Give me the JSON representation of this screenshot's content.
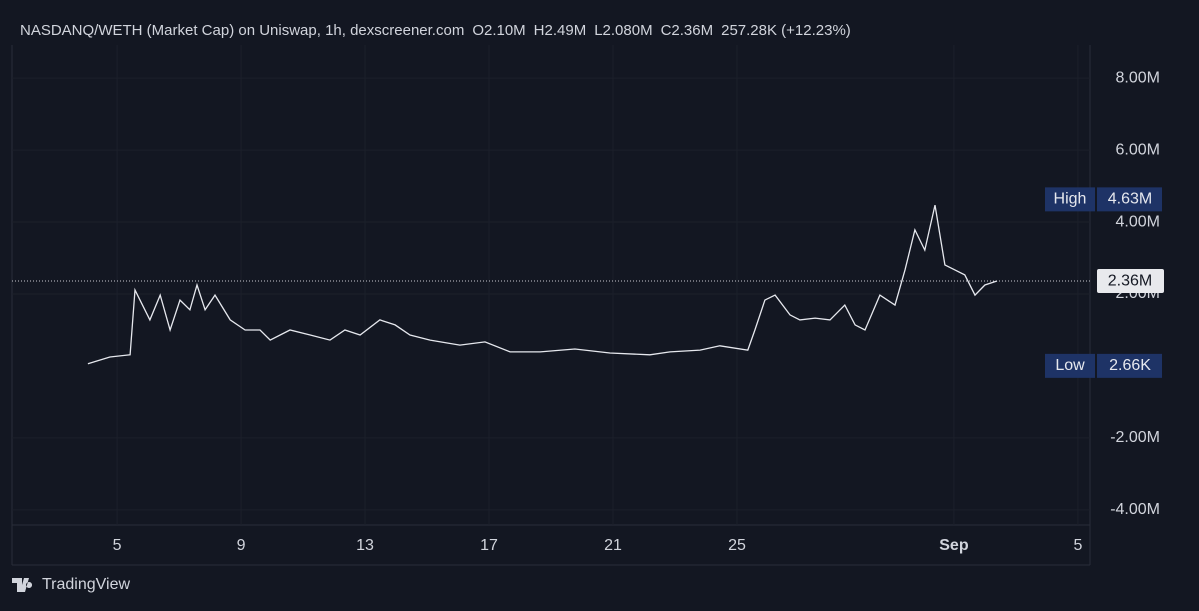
{
  "header": {
    "title": "NASDANQ/WETH (Market Cap) on Uniswap, 1h, dexscreener.com",
    "stats": [
      "O2.10M",
      "H2.49M",
      "L2.080M",
      "C2.36M",
      "257.28K (+12.23%)"
    ]
  },
  "chart_data": {
    "type": "line",
    "color": "#e6e8ee",
    "x": [
      4.06,
      4.77,
      5.42,
      5.58,
      5.74,
      6.06,
      6.39,
      6.71,
      7.03,
      7.35,
      7.58,
      7.84,
      8.16,
      8.65,
      9.13,
      9.61,
      9.94,
      10.58,
      11.23,
      11.87,
      12.35,
      12.84,
      13.48,
      13.97,
      14.45,
      15.1,
      16.06,
      16.87,
      17.68,
      18.65,
      19.77,
      20.9,
      22.19,
      22.84,
      23.81,
      24.45,
      25.35,
      25.58,
      25.9,
      26.23,
      26.71,
      27.03,
      27.52,
      28.0,
      28.48,
      28.81,
      29.13,
      29.61,
      30.1,
      30.42,
      30.74,
      31.06,
      31.39,
      31.71,
      32.03,
      32.35,
      32.68,
      33.0,
      33.39
    ],
    "values": [
      0.06,
      0.25,
      0.31,
      2.11,
      1.83,
      1.28,
      1.97,
      1.0,
      1.83,
      1.56,
      2.25,
      1.56,
      1.97,
      1.28,
      1.0,
      1.0,
      0.72,
      1.0,
      0.86,
      0.72,
      1.0,
      0.86,
      1.28,
      1.14,
      0.86,
      0.72,
      0.58,
      0.67,
      0.39,
      0.39,
      0.47,
      0.36,
      0.31,
      0.39,
      0.44,
      0.56,
      0.44,
      1.0,
      1.83,
      1.97,
      1.42,
      1.28,
      1.33,
      1.28,
      1.69,
      1.14,
      1.0,
      1.97,
      1.69,
      2.67,
      3.78,
      3.22,
      4.47,
      2.81,
      2.67,
      2.53,
      1.97,
      2.25,
      2.36
    ],
    "xlim": [
      1.61,
      36.39
    ],
    "xticks": [
      5,
      9,
      13,
      17,
      21,
      25,
      {
        "value": 32,
        "label": "Sep"
      },
      {
        "value": 36,
        "label": "5"
      }
    ],
    "ylim": [
      -4.42,
      8.92
    ],
    "yticks": [
      {
        "value": 8,
        "label": "8.00M"
      },
      {
        "value": 6,
        "label": "6.00M"
      },
      {
        "value": 4,
        "label": "4.00M"
      },
      {
        "value": 2,
        "label": "2.00M"
      },
      {
        "value": -2,
        "label": "-2.00M"
      },
      {
        "value": -4,
        "label": "-4.00M"
      }
    ],
    "grid": true,
    "markers": [
      {
        "label": "High",
        "value": 4.63,
        "value_label": "4.63M"
      },
      {
        "label": "Low",
        "value": 0.00266,
        "value_label": "2.66K"
      }
    ],
    "last": {
      "value": 2.36,
      "label": "2.36M"
    }
  },
  "footer": {
    "brand": "TradingView"
  }
}
